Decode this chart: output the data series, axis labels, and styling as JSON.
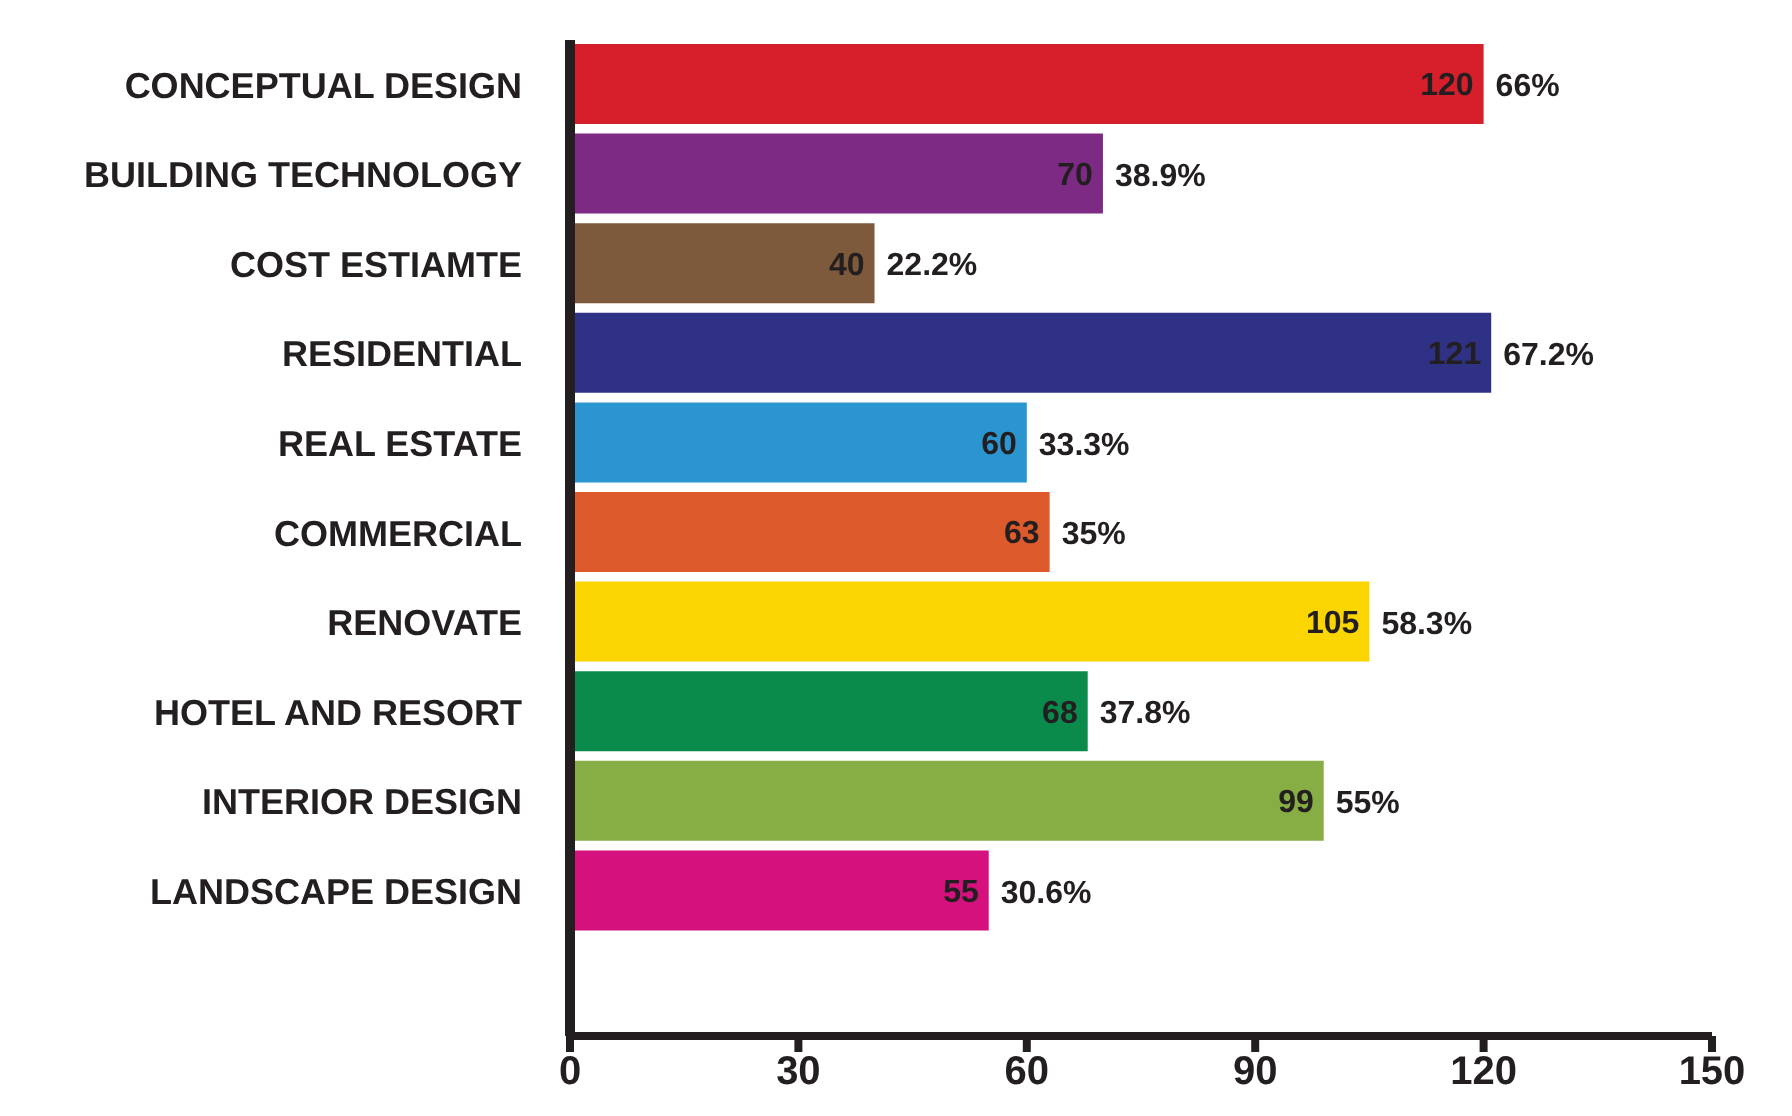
{
  "chart_data": {
    "type": "bar",
    "orientation": "horizontal",
    "categories": [
      "CONCEPTUAL DESIGN",
      "BUILDING TECHNOLOGY",
      "COST ESTIAMTE",
      "RESIDENTIAL",
      "REAL ESTATE",
      "COMMERCIAL",
      "RENOVATE",
      "HOTEL AND RESORT",
      "INTERIOR DESIGN",
      "LANDSCAPE DESIGN"
    ],
    "values": [
      120,
      70,
      40,
      121,
      60,
      63,
      105,
      68,
      99,
      55
    ],
    "colors": [
      "#d71f2b",
      "#7c2a84",
      "#7d5a3c",
      "#2e3184",
      "#2b95d0",
      "#dc5a2b",
      "#fbd500",
      "#0a8b4c",
      "#86ae45",
      "#d5117d"
    ],
    "xlim": [
      0,
      150
    ],
    "xticks": [
      0,
      30,
      60,
      90,
      120,
      150
    ],
    "grid": false,
    "data_labels": true,
    "annotations": [
      {
        "text": "66%",
        "x": 120,
        "y": "CONCEPTUAL DESIGN"
      },
      {
        "text": "38.9%",
        "x": 70,
        "y": "BUILDING TECHNOLOGY"
      },
      {
        "text": "22.2%",
        "x": 40,
        "y": "COST ESTIAMTE"
      },
      {
        "text": "67.2%",
        "x": 121,
        "y": "RESIDENTIAL"
      },
      {
        "text": "33.3%",
        "x": 60,
        "y": "REAL ESTATE"
      },
      {
        "text": "35%",
        "x": 63,
        "y": "COMMERCIAL"
      },
      {
        "text": "58.3%",
        "x": 105,
        "y": "RENOVATE"
      },
      {
        "text": "37.8%",
        "x": 68,
        "y": "HOTEL AND RESORT"
      },
      {
        "text": "55%",
        "x": 99,
        "y": "INTERIOR DESIGN"
      },
      {
        "text": "30.6%",
        "x": 55,
        "y": "LANDSCAPE DESIGN"
      }
    ]
  }
}
